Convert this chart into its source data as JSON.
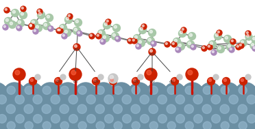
{
  "bg_color": "#ffffff",
  "silica_color": "#6b8fa3",
  "silica_highlight": "#9bbdd4",
  "silica_shadow": "#3d5f72",
  "oxygen_red": "#cc2200",
  "hydrogen_color": "#c8c8c8",
  "carbon_color": "#a8c8a8",
  "hyd_purple": "#aa88bb",
  "stick_color": "#cc1100",
  "bond_color": "#808080",
  "fig_w": 3.72,
  "fig_h": 1.89,
  "dpi": 100,
  "xlim": [
    0,
    372
  ],
  "ylim": [
    0,
    189
  ]
}
